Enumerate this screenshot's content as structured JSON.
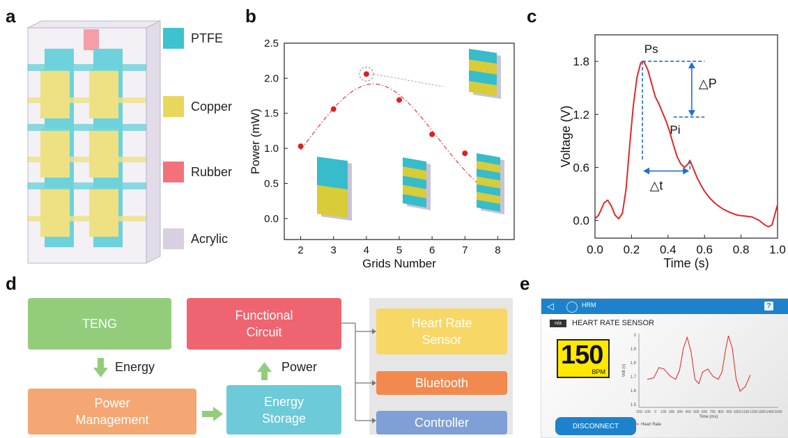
{
  "panels": {
    "a": "a",
    "b": "b",
    "c": "c",
    "d": "d",
    "e": "e"
  },
  "legend": [
    {
      "label": "PTFE",
      "color": "#3cc3cf"
    },
    {
      "label": "Copper",
      "color": "#e8d75a"
    },
    {
      "label": "Rubber",
      "color": "#f2727c"
    },
    {
      "label": "Acrylic",
      "color": "#d8cfe0"
    }
  ],
  "chart_data": [
    {
      "type": "line",
      "xlabel": "Grids Number",
      "ylabel": "Power  (mW)",
      "xlim": [
        1.5,
        8.5
      ],
      "ylim": [
        -0.3,
        2.5
      ],
      "xticks": [
        2,
        3,
        4,
        5,
        6,
        7,
        8
      ],
      "yticks": [
        0.0,
        0.5,
        1.0,
        1.5,
        2.0,
        2.5
      ],
      "series": [
        {
          "x": [
            2,
            3,
            4,
            5,
            6,
            7,
            8
          ],
          "y": [
            1.03,
            1.56,
            2.06,
            1.69,
            1.2,
            0.93,
            0.68
          ]
        }
      ],
      "fit_color": "#d84a4a",
      "point_color": "#e02020"
    },
    {
      "type": "line",
      "xlabel": "Time (s)",
      "ylabel": "Voltage  (V)",
      "xlim": [
        0.0,
        1.0
      ],
      "ylim": [
        -0.2,
        2.1
      ],
      "xticks": [
        0.0,
        0.2,
        0.4,
        0.6,
        0.8,
        1.0
      ],
      "yticks": [
        0.0,
        0.6,
        1.2,
        1.8
      ],
      "annotations": [
        "Ps",
        "Pi",
        "△P",
        "△t"
      ],
      "series": [
        {
          "x": [
            0.0,
            0.02,
            0.05,
            0.07,
            0.09,
            0.11,
            0.13,
            0.15,
            0.17,
            0.19,
            0.21,
            0.23,
            0.25,
            0.26,
            0.27,
            0.29,
            0.31,
            0.33,
            0.35,
            0.37,
            0.39,
            0.41,
            0.43,
            0.45,
            0.47,
            0.49,
            0.51,
            0.52,
            0.54,
            0.56,
            0.58,
            0.6,
            0.63,
            0.66,
            0.7,
            0.74,
            0.78,
            0.82,
            0.86,
            0.9,
            0.93,
            0.95,
            0.97,
            1.0
          ],
          "y": [
            0.02,
            0.06,
            0.2,
            0.23,
            0.16,
            0.06,
            0.02,
            0.08,
            0.35,
            0.85,
            1.3,
            1.62,
            1.78,
            1.8,
            1.79,
            1.7,
            1.55,
            1.4,
            1.32,
            1.22,
            1.12,
            1.0,
            0.85,
            0.72,
            0.64,
            0.6,
            0.64,
            0.68,
            0.58,
            0.48,
            0.4,
            0.33,
            0.25,
            0.19,
            0.13,
            0.09,
            0.06,
            0.05,
            0.04,
            0.0,
            -0.05,
            -0.07,
            -0.05,
            0.18
          ]
        }
      ],
      "color": "#e02828"
    }
  ],
  "flow": {
    "teng": "TENG",
    "energy": "Energy",
    "power_mgmt": [
      "Power",
      "Management"
    ],
    "functional": [
      "Functional",
      "Circuit"
    ],
    "power": "Power",
    "storage": [
      "Energy",
      "Storage"
    ],
    "hrs": [
      "Heart Rate",
      "Sensor"
    ],
    "bluetooth": "Bluetooth",
    "controller": "Controller"
  },
  "app": {
    "title": "HRM",
    "status": "n/a",
    "sensor_title": "HEART RATE SENSOR",
    "bpm_value": "150",
    "bpm_unit": "BPM",
    "graph_ylabel": "Volt (v)",
    "graph_xlabel": "Time (ms)",
    "graph_legend": "Heart Rate",
    "graph_yticks": [
      "2",
      "1.9",
      "1.8",
      "1.7",
      "1.6",
      "1.5"
    ],
    "graph_xticks": [
      "-200",
      "-100",
      "0",
      "100",
      "200",
      "300",
      "400",
      "500",
      "600",
      "700",
      "800",
      "900",
      "1000",
      "1100",
      "1200",
      "1300",
      "1400",
      "1500"
    ],
    "disconnect": "DISCONNECT",
    "help": "?"
  }
}
